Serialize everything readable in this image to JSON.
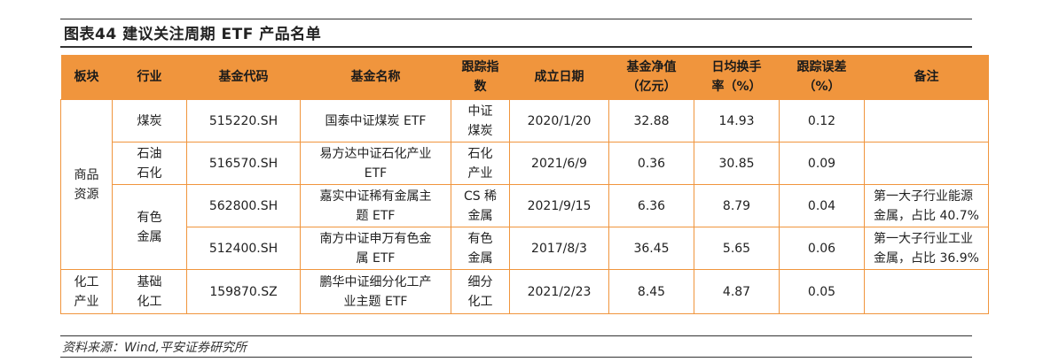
{
  "figure": {
    "title": "图表44   建议关注周期 ETF 产品名单"
  },
  "table": {
    "headers": [
      [
        "板块"
      ],
      [
        "行业"
      ],
      [
        "基金代码"
      ],
      [
        "基金名称"
      ],
      [
        "跟踪指",
        "数"
      ],
      [
        "成立日期"
      ],
      [
        "基金净值",
        "（亿元）"
      ],
      [
        "日均换手",
        "率（%）"
      ],
      [
        "跟踪误差",
        "（%）"
      ],
      [
        "备注"
      ]
    ],
    "sectors": [
      {
        "name": [
          "商品",
          "资源"
        ]
      },
      {
        "name": [
          "化工",
          "产业"
        ]
      }
    ],
    "industries": [
      {
        "name": [
          "煤炭"
        ]
      },
      {
        "name": [
          "石油",
          "石化"
        ]
      },
      {
        "name": [
          "有色",
          "金属"
        ]
      },
      {
        "name": [
          "基础",
          "化工"
        ]
      }
    ],
    "rows": [
      {
        "code": "515220.SH",
        "fund": [
          "国泰中证煤炭 ETF"
        ],
        "index": [
          "中证",
          "煤炭"
        ],
        "date": "2020/1/20",
        "nav": "32.88",
        "turnover": "14.93",
        "error": "0.12",
        "note": [
          "",
          ""
        ]
      },
      {
        "code": "516570.SH",
        "fund": [
          "易方达中证石化产业",
          "ETF"
        ],
        "index": [
          "石化",
          "产业"
        ],
        "date": "2021/6/9",
        "nav": "0.36",
        "turnover": "30.85",
        "error": "0.09",
        "note": [
          "",
          ""
        ]
      },
      {
        "code": "562800.SH",
        "fund": [
          "嘉实中证稀有金属主",
          "题 ETF"
        ],
        "index": [
          "CS 稀",
          "金属"
        ],
        "date": "2021/9/15",
        "nav": "6.36",
        "turnover": "8.79",
        "error": "0.04",
        "note": [
          "第一大子行业能源",
          "金属，占比 40.7%"
        ]
      },
      {
        "code": "512400.SH",
        "fund": [
          "南方中证申万有色金",
          "属 ETF"
        ],
        "index": [
          "有色",
          "金属"
        ],
        "date": "2017/8/3",
        "nav": "36.45",
        "turnover": "5.65",
        "error": "0.06",
        "note": [
          "第一大子行业工业",
          "金属，占比 36.9%"
        ]
      },
      {
        "code": "159870.SZ",
        "fund": [
          "鹏华中证细分化工产",
          "业主题 ETF"
        ],
        "index": [
          "细分",
          "化工"
        ],
        "date": "2021/2/23",
        "nav": "8.45",
        "turnover": "4.87",
        "error": "0.05",
        "note": [
          "",
          ""
        ]
      }
    ]
  },
  "source": "资料来源：Wind,平安证券研究所",
  "colors": {
    "header_bg": "#f0953d",
    "border": "#f0953d",
    "rule": "#333333"
  }
}
